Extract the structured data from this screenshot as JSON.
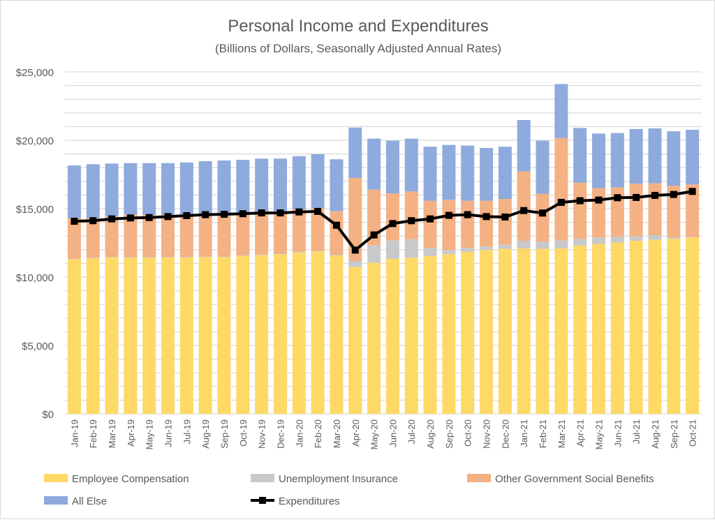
{
  "chart_data": {
    "type": "bar",
    "stacked": true,
    "title": "Personal Income and Expenditures",
    "subtitle": "(Billions of Dollars, Seasonally Adjusted Annual Rates)",
    "xlabel": "",
    "ylabel": "",
    "ylim": [
      0,
      25000
    ],
    "yticks": [
      0,
      5000,
      10000,
      15000,
      20000,
      25000
    ],
    "ytick_labels": [
      "$0",
      "$5,000",
      "$10,000",
      "$15,000",
      "$20,000",
      "$25,000"
    ],
    "grid": true,
    "minor_grid_step": 1000,
    "legend_placement": "bottom",
    "categories": [
      "Jan-19",
      "Feb-19",
      "Mar-19",
      "Apr-19",
      "May-19",
      "Jun-19",
      "Jul-19",
      "Aug-19",
      "Sep-19",
      "Oct-19",
      "Nov-19",
      "Dec-19",
      "Jan-20",
      "Feb-20",
      "Mar-20",
      "Apr-20",
      "May-20",
      "Jun-20",
      "Jul-20",
      "Aug-20",
      "Sep-20",
      "Oct-20",
      "Nov-20",
      "Dec-20",
      "Jan-21",
      "Feb-21",
      "Mar-21",
      "Apr-21",
      "May-21",
      "Jun-21",
      "Jul-21",
      "Aug-21",
      "Sep-21",
      "Oct-21"
    ],
    "series": [
      {
        "name": "Employee Compensation",
        "type": "bar",
        "color": "#FFD966",
        "values": [
          11290,
          11360,
          11430,
          11400,
          11400,
          11430,
          11430,
          11460,
          11460,
          11530,
          11600,
          11670,
          11800,
          11870,
          11560,
          10730,
          11040,
          11330,
          11410,
          11550,
          11670,
          11840,
          11970,
          12060,
          12090,
          12060,
          12090,
          12310,
          12430,
          12520,
          12650,
          12720,
          12790,
          12890
        ]
      },
      {
        "name": "Unemployment Insurance",
        "type": "bar",
        "color": "#C9C9C9",
        "values": [
          40,
          40,
          40,
          40,
          40,
          40,
          40,
          40,
          40,
          40,
          40,
          40,
          40,
          40,
          50,
          440,
          1290,
          1360,
          1360,
          590,
          300,
          300,
          270,
          320,
          560,
          540,
          600,
          480,
          460,
          440,
          340,
          340,
          100,
          30
        ]
      },
      {
        "name": "Other Government Social Benefits",
        "type": "bar",
        "color": "#F4B183",
        "values": [
          2970,
          2900,
          2950,
          3120,
          3120,
          3090,
          3090,
          3060,
          3060,
          3070,
          3170,
          3100,
          3110,
          3120,
          3200,
          6070,
          4060,
          3430,
          3490,
          3440,
          3680,
          3440,
          3340,
          3330,
          5070,
          3490,
          7480,
          4110,
          3610,
          3600,
          3830,
          3790,
          3790,
          3850
        ]
      },
      {
        "name": "All Else",
        "type": "bar",
        "color": "#8FAADC",
        "values": [
          3860,
          3950,
          3880,
          3770,
          3770,
          3770,
          3820,
          3910,
          3960,
          3930,
          3850,
          3850,
          3890,
          3950,
          3800,
          3690,
          3730,
          3850,
          3860,
          3950,
          4010,
          4030,
          3860,
          3820,
          3760,
          3880,
          3940,
          4000,
          3990,
          3970,
          4000,
          4020,
          3980,
          4000
        ]
      },
      {
        "name": "Expenditures",
        "type": "line",
        "color": "#000000",
        "marker": "square",
        "values": [
          14080,
          14120,
          14250,
          14320,
          14350,
          14420,
          14490,
          14560,
          14590,
          14630,
          14690,
          14690,
          14760,
          14800,
          13790,
          11970,
          13080,
          13910,
          14120,
          14250,
          14510,
          14560,
          14420,
          14390,
          14860,
          14680,
          15460,
          15580,
          15630,
          15800,
          15820,
          15970,
          16040,
          16260
        ]
      }
    ]
  }
}
